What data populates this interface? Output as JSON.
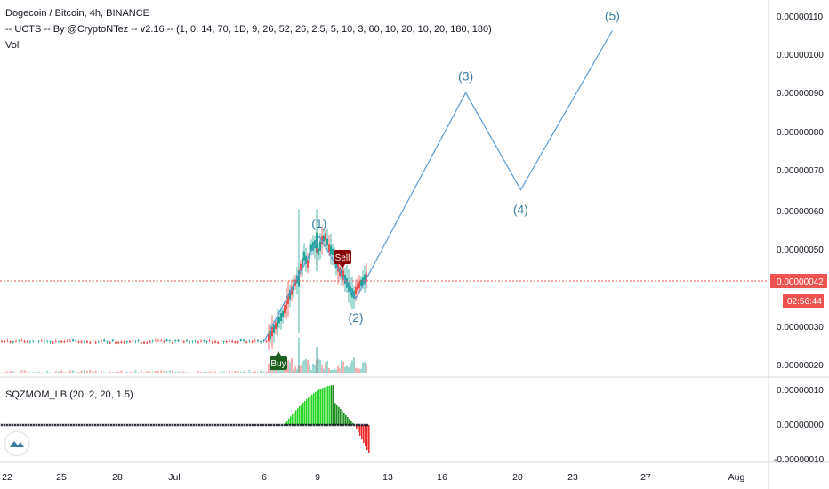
{
  "header": {
    "title": "Dogecoin / Bitcoin, 4h, BINANCE",
    "indicator": "-- UCTS -- By @CryptoNTez -- v2.16 -- (1, 0, 14, 70, 1D, 9, 26, 52, 26, 2.5, 5, 10, 3, 60, 10, 20, 10, 20, 180, 180)",
    "volume_label": "Vol"
  },
  "lower_pane": {
    "title": "SQZMOM_LB (20, 2, 20, 1.5)"
  },
  "price_axis": {
    "ticks": [
      "0.00000110",
      "0.00000100",
      "0.00000090",
      "0.00000080",
      "0.00000070",
      "0.00000060",
      "0.00000050",
      "0.00000030",
      "0.00000020"
    ],
    "current_price": "0.00000042",
    "countdown": "02:56:44"
  },
  "momentum_axis": {
    "ticks": [
      "0.00000010",
      "0.00000000",
      "-0.00000010"
    ]
  },
  "time_axis": {
    "ticks": [
      "22",
      "25",
      "28",
      "Jul",
      "6",
      "9",
      "13",
      "16",
      "20",
      "23",
      "27",
      "Aug"
    ]
  },
  "signals": {
    "buy": "Buy",
    "sell": "Sell"
  },
  "colors": {
    "up_candle": "#26a69a",
    "down_candle": "#ef5350",
    "wave_line": "#5b9bd5",
    "wave_label": "#3a7ca5",
    "price_line": "#ef5350",
    "buy_badge": "#1b5e20",
    "sell_badge": "#8b0000",
    "momentum_up": "#2bd62b",
    "momentum_down": "#ef2b2b",
    "axis_text": "#131722"
  },
  "chart_data": {
    "type": "line",
    "title": "Dogecoin / Bitcoin, 4h, BINANCE",
    "xlabel": "",
    "ylabel": "",
    "ylim": [
      1.8e-07,
      1.12e-06
    ],
    "grid": false,
    "series": [
      {
        "points": [
          {
            "x": "Jul 6",
            "y": 2.6e-07
          },
          {
            "x": "Jul 9",
            "y": 5.3e-07,
            "label": "(1)"
          },
          {
            "x": "Jul 11",
            "y": 3.7e-07,
            "label": "(2)"
          },
          {
            "x": "Jul 17",
            "y": 9e-07,
            "label": "(3)"
          },
          {
            "x": "Jul 20",
            "y": 6.5e-07,
            "label": "(4)"
          },
          {
            "x": "Jul 25",
            "y": 1.06e-06,
            "label": "(5)"
          }
        ]
      }
    ],
    "current_price": 4.2e-07,
    "signals": [
      {
        "label": "Buy",
        "x": "Jul 7"
      },
      {
        "label": "Sell",
        "x": "Jul 10"
      }
    ],
    "momentum": {
      "name": "SQZMOM_LB (20, 2, 20, 1.5)",
      "ylim": [
        -1e-07,
        1e-07
      ],
      "peak": 1e-07,
      "trough": -8e-08
    }
  }
}
